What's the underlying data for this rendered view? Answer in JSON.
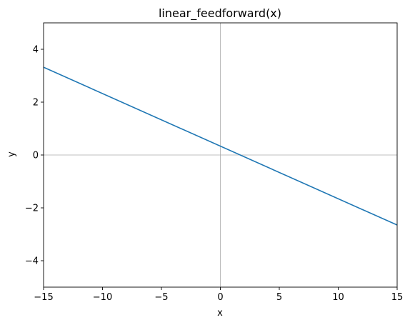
{
  "chart_data": {
    "type": "line",
    "title": "linear_feedforward(x)",
    "xlabel": "x",
    "ylabel": "y",
    "xlim": [
      -15,
      15
    ],
    "ylim": [
      -5,
      5
    ],
    "xticks": [
      -15,
      -10,
      -5,
      0,
      5,
      10,
      15
    ],
    "yticks": [
      -4,
      -2,
      0,
      2,
      4
    ],
    "xtick_labels": [
      "−15",
      "−10",
      "−5",
      "0",
      "5",
      "10",
      "15"
    ],
    "ytick_labels": [
      "−4",
      "−2",
      "0",
      "2",
      "4"
    ],
    "reference_lines": {
      "x": 0,
      "y": 0,
      "color": "#aaaaaa"
    },
    "grid": false,
    "series": [
      {
        "color": "#1f77b4",
        "x": [
          -15,
          15
        ],
        "y": [
          3.32,
          -2.65
        ]
      }
    ]
  }
}
